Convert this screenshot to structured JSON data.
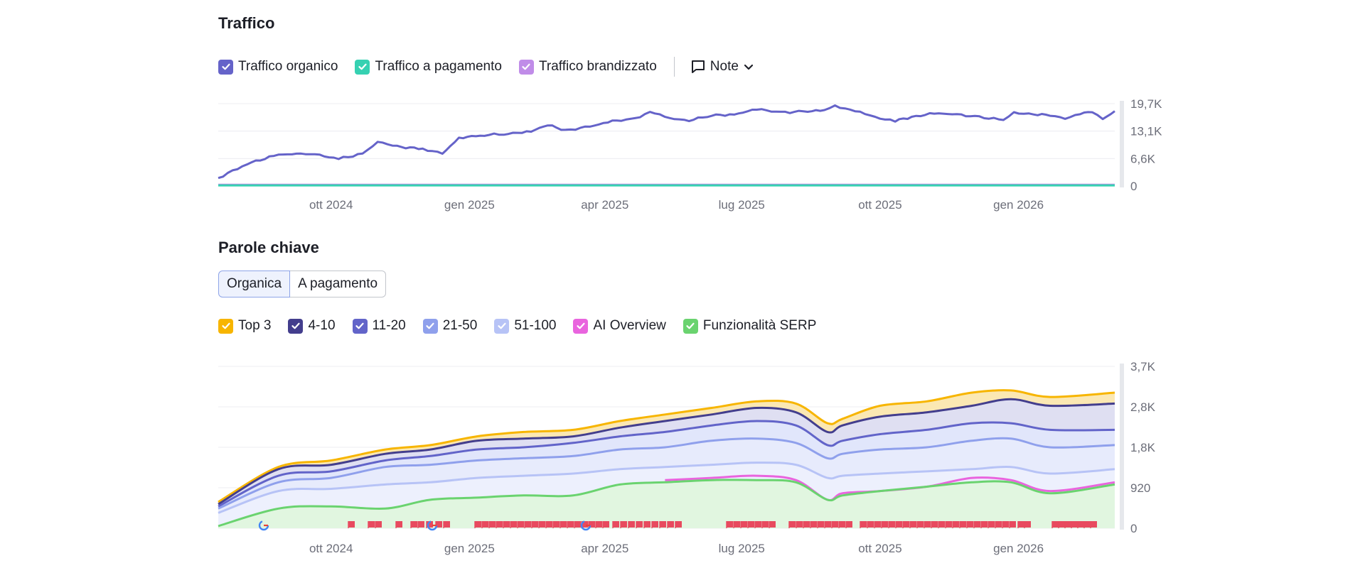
{
  "traffic": {
    "title": "Traffico",
    "legend": [
      {
        "label": "Traffico organico",
        "color": "#6563c9"
      },
      {
        "label": "Traffico a pagamento",
        "color": "#36d1b2"
      },
      {
        "label": "Traffico brandizzato",
        "color": "#c08ce8"
      }
    ],
    "note_label": "Note"
  },
  "keywords": {
    "title": "Parole chiave",
    "tabs": [
      {
        "label": "Organica",
        "active": true
      },
      {
        "label": "A pagamento",
        "active": false
      }
    ],
    "legend": [
      {
        "label": "Top 3",
        "color": "#f7b500"
      },
      {
        "label": "4-10",
        "color": "#433e8d"
      },
      {
        "label": "11-20",
        "color": "#6264c9"
      },
      {
        "label": "21-50",
        "color": "#8fa0ec"
      },
      {
        "label": "51-100",
        "color": "#b7c3f6"
      },
      {
        "label": "AI Overview",
        "color": "#e964de"
      },
      {
        "label": "Funzionalità SERP",
        "color": "#6ad36f"
      }
    ]
  },
  "chart_data": [
    {
      "type": "line",
      "title": "Traffico",
      "x_domain": [
        "2024-08-01",
        "2026-03-20"
      ],
      "x_ticks": [
        "ott 2024",
        "gen 2025",
        "apr 2025",
        "lug 2025",
        "ott 2025",
        "gen 2026"
      ],
      "y_ticks": [
        "19,7K",
        "13,1K",
        "6,6K",
        "0"
      ],
      "ylim": [
        0,
        19700
      ],
      "grid": true,
      "series": [
        {
          "name": "Traffico organico",
          "color": "#6563c9",
          "points": [
            [
              "2024-08-01",
              1900
            ],
            [
              "2024-08-20",
              5300
            ],
            [
              "2024-09-10",
              7500
            ],
            [
              "2024-10-01",
              7800
            ],
            [
              "2024-10-20",
              6500
            ],
            [
              "2024-11-05",
              7700
            ],
            [
              "2024-11-15",
              10600
            ],
            [
              "2024-11-28",
              9400
            ],
            [
              "2024-12-15",
              8900
            ],
            [
              "2024-12-28",
              7700
            ],
            [
              "2025-01-08",
              11500
            ],
            [
              "2025-01-25",
              12200
            ],
            [
              "2025-02-10",
              12500
            ],
            [
              "2025-02-25",
              13100
            ],
            [
              "2025-03-08",
              14600
            ],
            [
              "2025-03-20",
              13300
            ],
            [
              "2025-04-05",
              14200
            ],
            [
              "2025-04-20",
              15500
            ],
            [
              "2025-05-05",
              16100
            ],
            [
              "2025-05-15",
              17800
            ],
            [
              "2025-05-28",
              16200
            ],
            [
              "2025-06-10",
              15700
            ],
            [
              "2025-06-25",
              16900
            ],
            [
              "2025-07-10",
              17100
            ],
            [
              "2025-07-25",
              18400
            ],
            [
              "2025-08-10",
              17600
            ],
            [
              "2025-08-25",
              17800
            ],
            [
              "2025-09-08",
              18100
            ],
            [
              "2025-09-15",
              19100
            ],
            [
              "2025-09-25",
              18400
            ],
            [
              "2025-10-05",
              17200
            ],
            [
              "2025-10-15",
              16200
            ],
            [
              "2025-10-25",
              15600
            ],
            [
              "2025-11-05",
              16500
            ],
            [
              "2025-11-20",
              17400
            ],
            [
              "2025-12-05",
              17100
            ],
            [
              "2025-12-20",
              16500
            ],
            [
              "2026-01-05",
              15800
            ],
            [
              "2026-01-12",
              17500
            ],
            [
              "2026-01-25",
              17200
            ],
            [
              "2026-02-05",
              16900
            ],
            [
              "2026-02-15",
              16100
            ],
            [
              "2026-02-25",
              17400
            ],
            [
              "2026-03-05",
              17600
            ],
            [
              "2026-03-12",
              16000
            ],
            [
              "2026-03-20",
              17900
            ]
          ]
        },
        {
          "name": "Traffico a pagamento",
          "color": "#36d1b2",
          "points": [
            [
              "2024-08-01",
              150
            ],
            [
              "2026-03-20",
              150
            ]
          ]
        },
        {
          "name": "Traffico brandizzato",
          "color": "#c08ce8",
          "points": [
            [
              "2024-08-01",
              300
            ],
            [
              "2026-03-20",
              300
            ]
          ]
        }
      ]
    },
    {
      "type": "area",
      "title": "Parole chiave",
      "x_domain": [
        "2024-08-01",
        "2026-03-20"
      ],
      "x_ticks": [
        "ott 2024",
        "gen 2025",
        "apr 2025",
        "lug 2025",
        "ott 2025",
        "gen 2026"
      ],
      "y_ticks": [
        "3,7K",
        "2,8K",
        "1,8K",
        "920",
        "0"
      ],
      "ylim": [
        0,
        3700
      ],
      "grid": true,
      "x_anchors": [
        "2024-08-01",
        "2024-09-10",
        "2024-10-15",
        "2024-11-20",
        "2024-12-20",
        "2025-01-20",
        "2025-02-20",
        "2025-03-25",
        "2025-04-25",
        "2025-05-25",
        "2025-06-25",
        "2025-07-25",
        "2025-08-20",
        "2025-09-10",
        "2025-09-20",
        "2025-10-15",
        "2025-11-15",
        "2025-12-15",
        "2026-01-10",
        "2026-02-05",
        "2026-03-20"
      ],
      "series": [
        {
          "name": "Top 3",
          "color": "#f7b500",
          "fill": "#fbe8b3",
          "values": [
            600,
            1400,
            1550,
            1800,
            1900,
            2100,
            2200,
            2250,
            2450,
            2600,
            2750,
            2900,
            2850,
            2400,
            2500,
            2800,
            2900,
            3100,
            3150,
            3000,
            3100
          ]
        },
        {
          "name": "4-10",
          "color": "#433e8d",
          "fill": "#dfdff2",
          "values": [
            550,
            1350,
            1450,
            1700,
            1800,
            2000,
            2050,
            2100,
            2300,
            2450,
            2600,
            2750,
            2650,
            2200,
            2350,
            2550,
            2650,
            2800,
            2950,
            2800,
            2850
          ]
        },
        {
          "name": "11-20",
          "color": "#6264c9",
          "fill": "#e1e6fb",
          "values": [
            500,
            1200,
            1300,
            1550,
            1650,
            1800,
            1850,
            1950,
            2100,
            2200,
            2350,
            2450,
            2350,
            1900,
            2000,
            2150,
            2250,
            2400,
            2400,
            2250,
            2250
          ]
        },
        {
          "name": "21-50",
          "color": "#8fa0ec",
          "fill": "#e7ebfc",
          "values": [
            450,
            1050,
            1150,
            1400,
            1450,
            1550,
            1600,
            1650,
            1800,
            1850,
            2000,
            2050,
            1950,
            1600,
            1700,
            1800,
            1850,
            2000,
            2050,
            1850,
            1900
          ]
        },
        {
          "name": "51-100",
          "color": "#b7c3f6",
          "fill": "#edf0fd",
          "values": [
            350,
            850,
            900,
            1000,
            1050,
            1150,
            1200,
            1250,
            1350,
            1400,
            1450,
            1500,
            1450,
            1150,
            1200,
            1250,
            1300,
            1350,
            1400,
            1250,
            1350
          ]
        },
        {
          "name": "AI Overview",
          "color": "#e964de",
          "fill": "none",
          "values": [
            null,
            null,
            null,
            null,
            null,
            null,
            null,
            null,
            null,
            1100,
            1150,
            1200,
            1100,
            650,
            800,
            850,
            950,
            1150,
            1100,
            850,
            1050
          ]
        },
        {
          "name": "Funzionalità SERP",
          "color": "#6ad36f",
          "fill": "#e1f6e0",
          "values": [
            50,
            450,
            500,
            450,
            650,
            700,
            750,
            750,
            1000,
            1050,
            1100,
            1100,
            1050,
            650,
            750,
            850,
            950,
            1050,
            1050,
            800,
            1000
          ]
        }
      ]
    }
  ]
}
